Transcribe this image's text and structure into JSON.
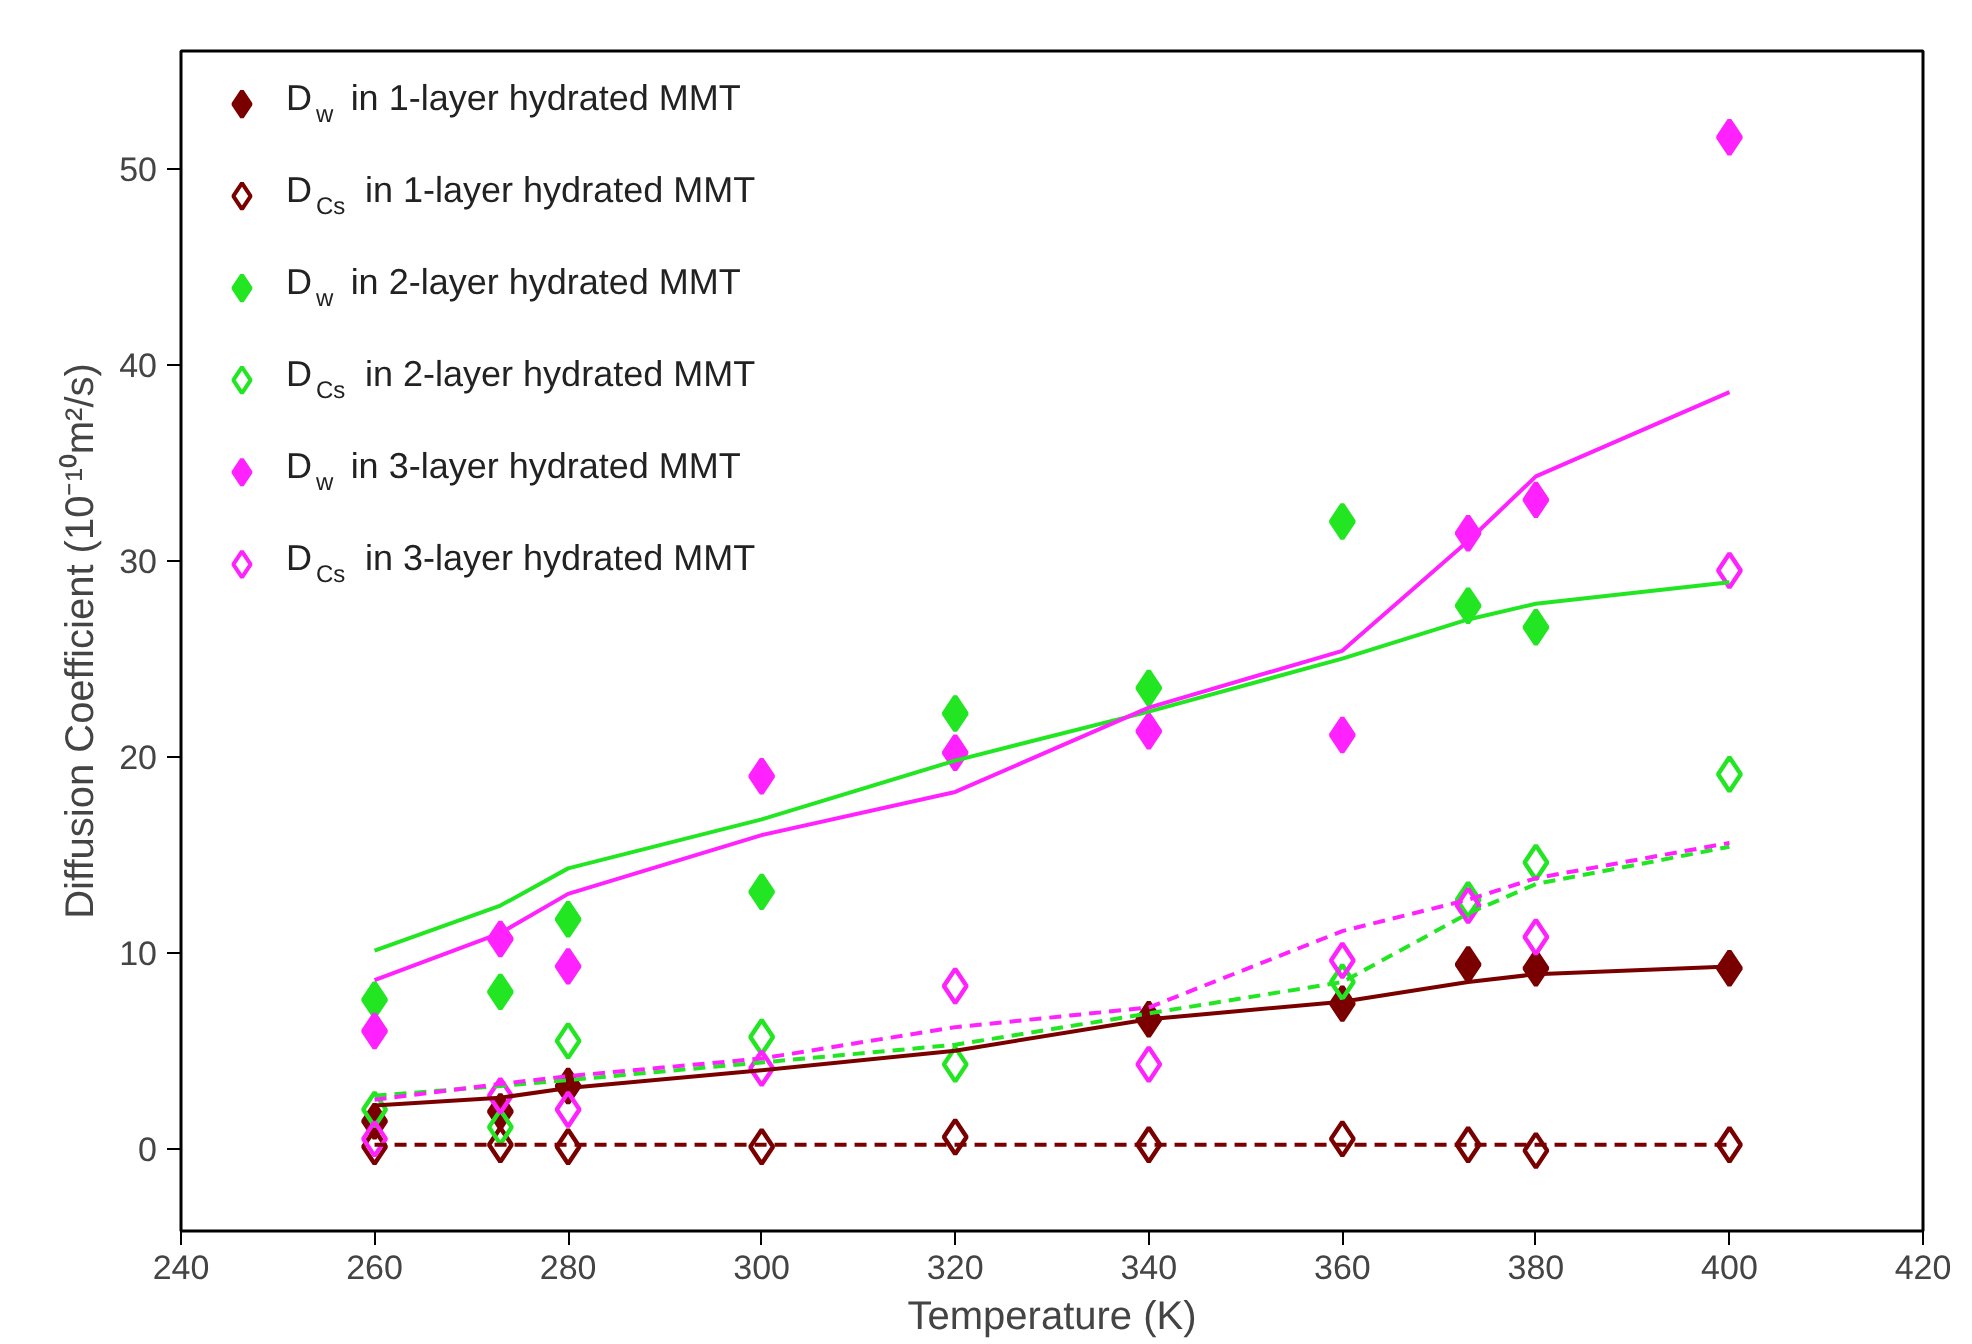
{
  "chart_data": {
    "type": "scatter",
    "xlabel": "Temperature (K)",
    "ylabel": "Diffusion Coefficient (10⁻¹⁰m²/s)",
    "x": [
      260,
      273,
      280,
      300,
      320,
      340,
      360,
      373,
      380,
      400
    ],
    "xlim": [
      240,
      420
    ],
    "xticks": [
      240,
      260,
      280,
      300,
      320,
      340,
      360,
      380,
      400,
      420
    ],
    "ylim": [
      -4.2,
      56
    ],
    "yticks": [
      0,
      10,
      20,
      30,
      40,
      50
    ],
    "grid": false,
    "legend": "top left",
    "marker": "diamond",
    "series": [
      {
        "name": "D$_{w}$ in 1-layer hydrated MMT",
        "color": "#7a0000",
        "values": [
          1.4,
          1.9,
          3.2,
          null,
          null,
          6.6,
          7.4,
          9.4,
          9.2,
          9.2
        ]
      },
      {
        "name": "D$_{Cs}$ in 1-layer hydrated MMT",
        "color": "#7a0000",
        "marker": "diamond_open",
        "values": [
          0.1,
          0.2,
          0.1,
          0.1,
          0.6,
          0.2,
          0.5,
          0.2,
          -0.1,
          0.2
        ]
      },
      {
        "name": "D$_{w}$ in 2-layer hydrated MMT",
        "color": "#22e622",
        "values": [
          7.6,
          8.0,
          11.7,
          13.1,
          22.2,
          23.5,
          32.0,
          27.7,
          26.6,
          null
        ]
      },
      {
        "name": "D$_{Cs}$ in 2-layer hydrated MMT",
        "color": "#22e622",
        "marker": "diamond_open",
        "values": [
          2.0,
          1.1,
          5.5,
          5.7,
          4.3,
          null,
          8.5,
          12.7,
          14.6,
          19.1
        ]
      },
      {
        "name": "D$_{w}$ in 3-layer hydrated MMT",
        "color": "#ff22ff",
        "values": [
          6.0,
          10.7,
          9.3,
          19.0,
          20.2,
          21.3,
          21.1,
          31.4,
          33.1,
          51.6
        ]
      },
      {
        "name": "D$_{Cs}$ in 3-layer hydrated MMT",
        "color": "#ff22ff",
        "marker": "diamond_open",
        "values": [
          0.5,
          2.7,
          2.0,
          4.1,
          8.3,
          4.3,
          9.6,
          12.4,
          10.8,
          29.5
        ]
      },
      {
        "type": "line",
        "color": "#7a0000",
        "line_style": "solid",
        "marker": "none",
        "values": [
          2.2,
          2.6,
          3.1,
          4.0,
          5.0,
          6.6,
          7.5,
          8.5,
          8.9,
          9.3
        ]
      },
      {
        "type": "line",
        "color": "#7a0000",
        "line_style": "dashed",
        "marker": "none",
        "values": [
          0.2,
          0.2,
          0.2,
          0.2,
          0.2,
          0.2,
          0.2,
          0.2,
          0.2,
          0.2
        ]
      },
      {
        "type": "line",
        "color": "#22e622",
        "line_style": "solid",
        "marker": "none",
        "values": [
          10.1,
          12.4,
          14.3,
          16.8,
          19.8,
          22.3,
          25.0,
          27.0,
          27.8,
          28.9
        ]
      },
      {
        "type": "line",
        "color": "#22e622",
        "line_style": "dashed",
        "marker": "none",
        "values": [
          2.7,
          3.2,
          3.5,
          4.4,
          5.3,
          6.9,
          8.5,
          12.0,
          13.5,
          15.4
        ]
      },
      {
        "type": "line",
        "color": "#ff22ff",
        "line_style": "solid",
        "marker": "none",
        "values": [
          8.6,
          11.0,
          13.0,
          16.0,
          18.2,
          22.5,
          25.4,
          31.0,
          34.3,
          38.6
        ]
      },
      {
        "type": "line",
        "color": "#ff22ff",
        "line_style": "dashed",
        "marker": "none",
        "values": [
          2.5,
          3.3,
          3.7,
          4.6,
          6.2,
          7.2,
          11.1,
          12.7,
          13.8,
          15.6
        ]
      }
    ]
  }
}
